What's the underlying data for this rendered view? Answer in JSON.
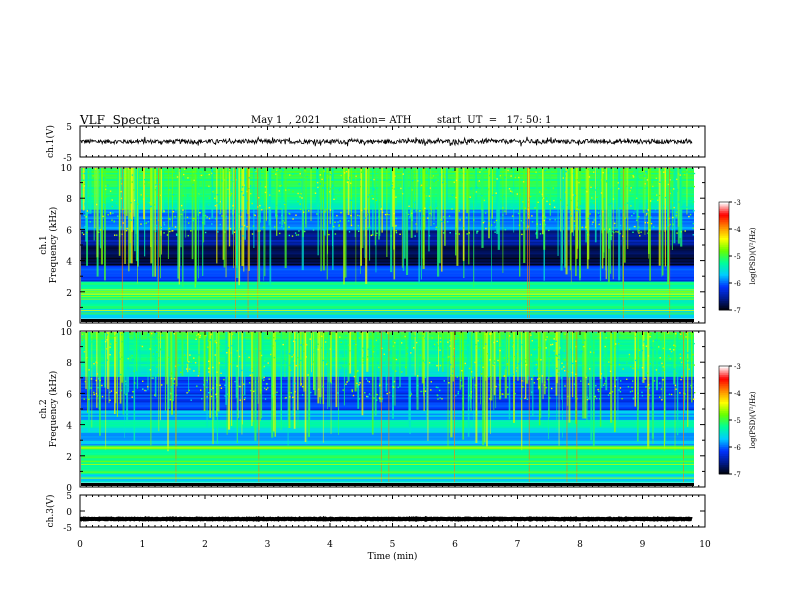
{
  "header": {
    "title": "VLF  Spectra",
    "date": "May 1  , 2021",
    "station": "station= ATH",
    "start_ut": "start  UT  =   17: 50: 1"
  },
  "colors": {
    "waveform": "#000000",
    "colormap": [
      "#000000",
      "#001a8c",
      "#0033ff",
      "#00ccff",
      "#00ff99",
      "#66ff00",
      "#ffff00",
      "#ff8800",
      "#ff0000",
      "#ffffff"
    ]
  },
  "chart_data": [
    {
      "panel": "ch1-waveform",
      "type": "line",
      "ylabel": "ch.1(V)",
      "ylim": [
        -5,
        5
      ],
      "yticks": [
        "5",
        "-5"
      ],
      "xlim": [
        0,
        10
      ],
      "trace": {
        "level": 0,
        "amplitude": 0.6,
        "end_min": 9.8
      }
    },
    {
      "panel": "ch1-spectrogram",
      "type": "heatmap",
      "ylabel": "ch.1\nFrequency (kHz)",
      "ylim": [
        0,
        10
      ],
      "yticks": [
        "0",
        "2",
        "4",
        "6",
        "8",
        "10"
      ],
      "xlim": [
        0,
        10
      ],
      "colorbar": {
        "label": "log(PSD)(V²/Hz)",
        "range": [
          -7,
          -3
        ],
        "ticks": [
          "-3",
          "-4",
          "-5",
          "-6",
          "-7"
        ]
      }
    },
    {
      "panel": "ch2-spectrogram",
      "type": "heatmap",
      "ylabel": "ch.2\nFrequency (kHz)",
      "ylim": [
        0,
        10
      ],
      "yticks": [
        "0",
        "2",
        "4",
        "6",
        "8",
        "10"
      ],
      "xlim": [
        0,
        10
      ],
      "colorbar": {
        "label": "log(PSD)(V²/Hz)",
        "range": [
          -7,
          -3
        ],
        "ticks": [
          "-3",
          "-4",
          "-5",
          "-6",
          "-7"
        ]
      }
    },
    {
      "panel": "ch3-waveform",
      "type": "line",
      "ylabel": "ch.3(V)",
      "ylim": [
        -5,
        5
      ],
      "yticks": [
        "5",
        "0",
        "-5"
      ],
      "xlim": [
        0,
        10
      ],
      "xlabel": "Time  (min)",
      "xticks": [
        "0",
        "1",
        "2",
        "3",
        "4",
        "5",
        "6",
        "7",
        "8",
        "9",
        "10"
      ],
      "trace": {
        "level": -2.5,
        "amplitude": 0.1,
        "end_min": 9.8
      }
    }
  ]
}
